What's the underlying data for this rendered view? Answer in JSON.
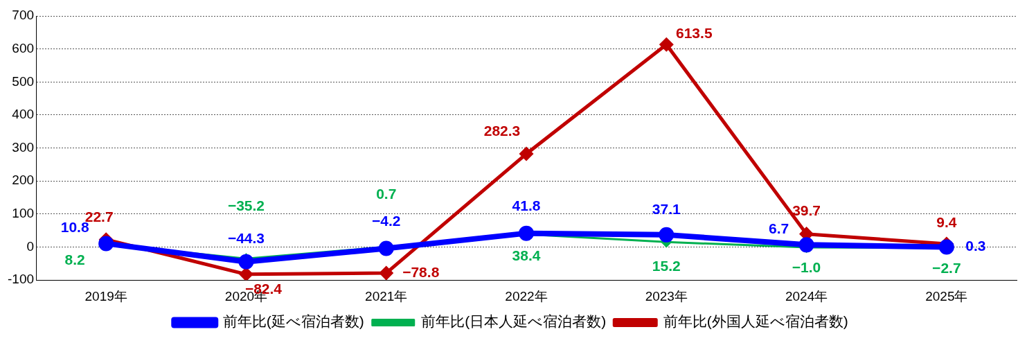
{
  "chart_data": {
    "type": "line",
    "categories": [
      "2019年",
      "2020年",
      "2021年",
      "2022年",
      "2023年",
      "2024年",
      "2025年"
    ],
    "series": [
      {
        "name": "前年比(延べ宿泊者数)",
        "color": "#0000ff",
        "marker": "circle",
        "values": [
          10.8,
          -44.3,
          -4.2,
          41.8,
          37.1,
          6.7,
          0.3
        ],
        "value_labels": [
          "10.8",
          "−44.3",
          "−4.2",
          "41.8",
          "37.1",
          "6.7",
          "0.3"
        ]
      },
      {
        "name": "前年比(日本人延べ宿泊者数)",
        "color": "#00b050",
        "marker": "diamond",
        "values": [
          8.2,
          -35.2,
          0.7,
          38.4,
          15.2,
          -1.0,
          -2.7
        ],
        "value_labels": [
          "8.2",
          "−35.2",
          "0.7",
          "38.4",
          "15.2",
          "−1.0",
          "−2.7"
        ]
      },
      {
        "name": "前年比(外国人延べ宿泊者数)",
        "color": "#c00000",
        "marker": "diamond",
        "values": [
          22.7,
          -82.4,
          -78.8,
          282.3,
          613.5,
          39.7,
          9.4
        ],
        "value_labels": [
          "22.7",
          "−82.4",
          "−78.8",
          "282.3",
          "613.5",
          "39.7",
          "9.4"
        ]
      }
    ],
    "ylim": [
      -100,
      700
    ],
    "yticks": [
      -100,
      0,
      100,
      200,
      300,
      400,
      500,
      600,
      700
    ],
    "grid": "y",
    "legend": "bottom",
    "line_style": "solid"
  }
}
